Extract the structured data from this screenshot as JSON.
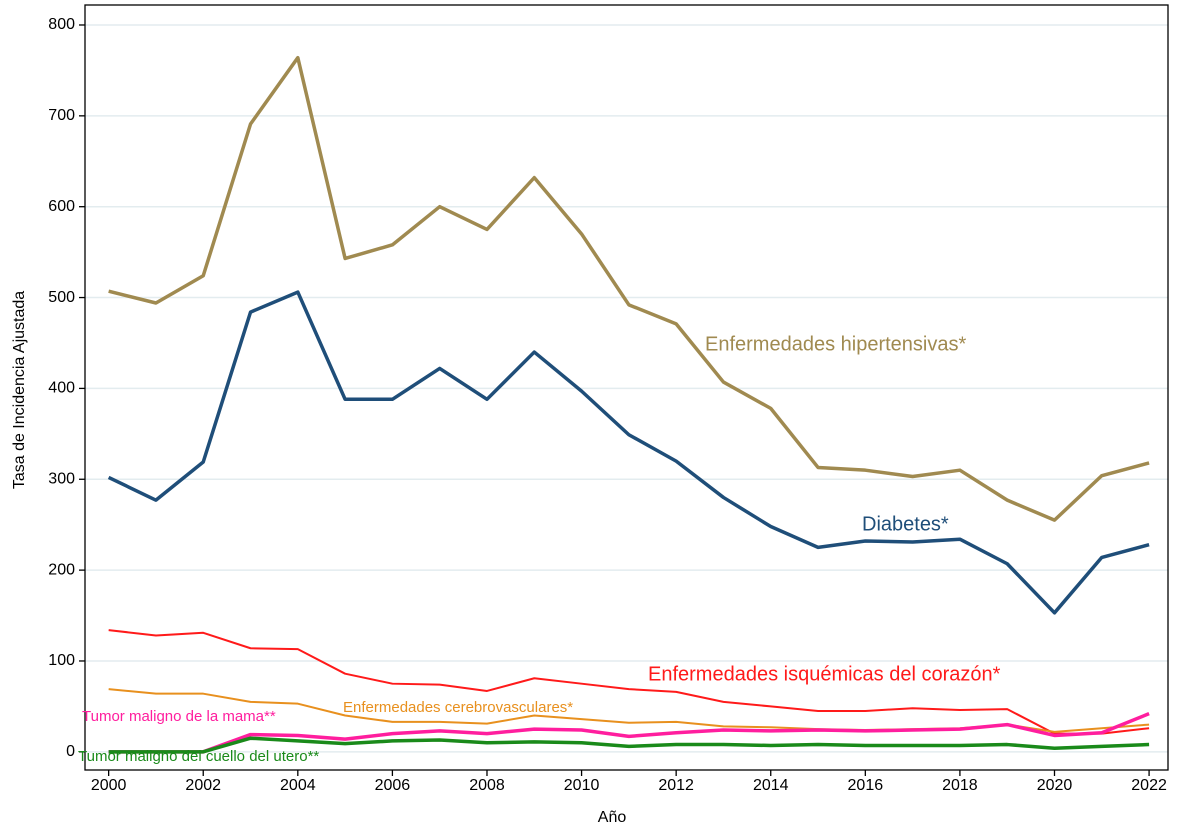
{
  "chart_data": {
    "type": "line",
    "x_label": "Año",
    "y_label": "Tasa de Incidencia Ajustada",
    "x": [
      2000,
      2001,
      2002,
      2003,
      2004,
      2005,
      2006,
      2007,
      2008,
      2009,
      2010,
      2011,
      2012,
      2013,
      2014,
      2015,
      2016,
      2017,
      2018,
      2019,
      2020,
      2021,
      2022
    ],
    "xlim": [
      1999.5,
      2022.4
    ],
    "xticks": [
      2000,
      2002,
      2004,
      2006,
      2008,
      2010,
      2012,
      2014,
      2016,
      2018,
      2020,
      2022
    ],
    "ylim": [
      -20,
      822
    ],
    "yticks": [
      0,
      100,
      200,
      300,
      400,
      500,
      600,
      700,
      800
    ],
    "grid": true,
    "series": [
      {
        "name": "Enfermedades hipertensivas*",
        "color": "#a08a50",
        "values": [
          507,
          494,
          524,
          691,
          764,
          543,
          558,
          600,
          575,
          632,
          570,
          492,
          471,
          407,
          378,
          313,
          310,
          303,
          310,
          277,
          255,
          304,
          318
        ]
      },
      {
        "name": "Diabetes*",
        "color": "#1f4e79",
        "values": [
          302,
          277,
          319,
          484,
          506,
          388,
          388,
          422,
          388,
          440,
          397,
          349,
          320,
          280,
          248,
          225,
          232,
          231,
          234,
          207,
          153,
          214,
          228
        ]
      },
      {
        "name": "Enfermedades isquémicas del corazón*",
        "color": "#ff1a1a",
        "values": [
          134,
          128,
          131,
          114,
          113,
          86,
          75,
          74,
          67,
          81,
          75,
          69,
          66,
          55,
          50,
          45,
          45,
          48,
          46,
          47,
          20,
          20,
          26
        ]
      },
      {
        "name": "Enfermedades cerebrovasculares*",
        "color": "#e8901e",
        "values": [
          69,
          64,
          64,
          55,
          53,
          40,
          33,
          33,
          31,
          40,
          36,
          32,
          33,
          28,
          27,
          25,
          24,
          25,
          26,
          30,
          22,
          26,
          30
        ]
      },
      {
        "name": "Tumor maligno de la mama**",
        "color": "#ff1e9e",
        "values": [
          0,
          0,
          0,
          19,
          18,
          14,
          20,
          23,
          20,
          25,
          24,
          17,
          21,
          24,
          23,
          24,
          23,
          24,
          25,
          30,
          18,
          21,
          42
        ]
      },
      {
        "name": "Tumor maligno del cuello del utero**",
        "color": "#1a8a1a",
        "values": [
          0,
          0,
          0,
          15,
          12,
          9,
          12,
          13,
          10,
          11,
          10,
          6,
          8,
          8,
          7,
          8,
          7,
          7,
          7,
          8,
          4,
          6,
          8
        ]
      }
    ]
  }
}
